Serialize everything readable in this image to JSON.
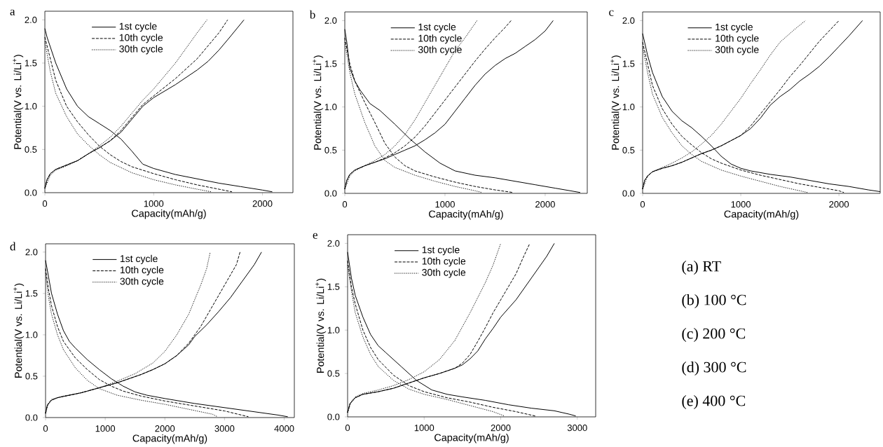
{
  "chart_data": [
    {
      "type": "line",
      "title": "a",
      "xlabel": "Capacity(mAh/g)",
      "ylabel": "Potential(V vs. Li/Li$^{+}$)",
      "xlim": [
        0,
        2280
      ],
      "ylim": [
        0,
        2.1
      ],
      "xticks": [
        0,
        1000,
        2000
      ],
      "yticks": [
        {
          "value": 0,
          "label": "0.0"
        },
        {
          "value": 0.5,
          "label": "0.5"
        },
        {
          "value": 1,
          "label": "1.0"
        },
        {
          "value": 1.5,
          "label": "1.5"
        },
        {
          "value": 2,
          "label": "2.0"
        }
      ],
      "legend": "top left",
      "series": [
        {
          "name": "1st cycle",
          "color": "#000000",
          "line_style": "solid",
          "x": [
            0,
            20,
            100,
            200,
            300,
            400,
            500,
            600,
            700,
            800,
            900,
            1000,
            1200,
            1400,
            1600,
            1800,
            2000,
            2090
          ],
          "values": [
            1.9,
            1.8,
            1.5,
            1.2,
            1.0,
            0.88,
            0.8,
            0.72,
            0.62,
            0.48,
            0.33,
            0.28,
            0.21,
            0.16,
            0.11,
            0.07,
            0.03,
            0.01
          ]
        },
        {
          "name": "10th cycle",
          "color": "#000000",
          "line_style": "dashed",
          "x": [
            0,
            50,
            100,
            200,
            300,
            400,
            500,
            600,
            700,
            800,
            1000,
            1200,
            1400,
            1600,
            1720
          ],
          "values": [
            1.8,
            1.55,
            1.3,
            1.0,
            0.82,
            0.67,
            0.54,
            0.44,
            0.36,
            0.3,
            0.22,
            0.15,
            0.09,
            0.04,
            0.01
          ]
        },
        {
          "name": "30th cycle",
          "color": "#000000",
          "line_style": "dotted",
          "x": [
            0,
            50,
            100,
            200,
            300,
            400,
            500,
            600,
            800,
            1000,
            1200,
            1400,
            1530
          ],
          "values": [
            1.75,
            1.4,
            1.15,
            0.88,
            0.68,
            0.55,
            0.44,
            0.35,
            0.23,
            0.15,
            0.09,
            0.04,
            0.01
          ]
        },
        {
          "color": "#000000",
          "line_style": "solid",
          "x": [
            0,
            20,
            50,
            100,
            200,
            300,
            400,
            500,
            600,
            700,
            800,
            900,
            1000,
            1200,
            1400,
            1500,
            1600,
            1700,
            1830
          ],
          "values": [
            0.05,
            0.15,
            0.22,
            0.27,
            0.32,
            0.37,
            0.45,
            0.52,
            0.6,
            0.7,
            0.85,
            1.0,
            1.1,
            1.25,
            1.42,
            1.52,
            1.65,
            1.8,
            2.0
          ]
        },
        {
          "color": "#000000",
          "line_style": "dashed",
          "x": [
            0,
            20,
            50,
            100,
            200,
            300,
            400,
            500,
            600,
            700,
            800,
            900,
            1000,
            1200,
            1400,
            1600,
            1680
          ],
          "values": [
            0.05,
            0.15,
            0.22,
            0.27,
            0.32,
            0.37,
            0.45,
            0.52,
            0.6,
            0.72,
            0.87,
            1.02,
            1.12,
            1.32,
            1.55,
            1.85,
            2.0
          ]
        },
        {
          "color": "#000000",
          "line_style": "dotted",
          "x": [
            0,
            50,
            100,
            200,
            300,
            400,
            500,
            600,
            700,
            800,
            900,
            1000,
            1200,
            1400,
            1490
          ],
          "values": [
            0.05,
            0.2,
            0.26,
            0.31,
            0.37,
            0.45,
            0.54,
            0.64,
            0.77,
            0.92,
            1.07,
            1.2,
            1.5,
            1.85,
            2.0
          ]
        }
      ]
    },
    {
      "type": "line",
      "title": "b",
      "xlabel": "Capacity(mAh/g)",
      "ylabel": "Potential(V vs. Li/Li$^{+}$)",
      "xlim": [
        0,
        2420
      ],
      "ylim": [
        0,
        2.1
      ],
      "xticks": [
        0,
        1000,
        2000
      ],
      "yticks": [
        {
          "value": 0,
          "label": "0.0"
        },
        {
          "value": 0.5,
          "label": "0.5"
        },
        {
          "value": 1,
          "label": "1.0"
        },
        {
          "value": 1.5,
          "label": "1.5"
        },
        {
          "value": 2,
          "label": "2.0"
        }
      ],
      "legend": "top left",
      "series": [
        {
          "name": "1st cycle",
          "color": "#000000",
          "line_style": "solid",
          "x": [
            0,
            20,
            50,
            100,
            150,
            250,
            350,
            500,
            650,
            800,
            950,
            1100,
            1300,
            1500,
            1700,
            1900,
            2100,
            2350
          ],
          "values": [
            1.9,
            1.75,
            1.45,
            1.3,
            1.2,
            1.04,
            0.96,
            0.8,
            0.63,
            0.48,
            0.35,
            0.26,
            0.21,
            0.18,
            0.14,
            0.1,
            0.06,
            0.01
          ]
        },
        {
          "name": "10th cycle",
          "color": "#000000",
          "line_style": "dashed",
          "x": [
            0,
            50,
            100,
            200,
            300,
            400,
            500,
            600,
            700,
            900,
            1100,
            1300,
            1500,
            1680
          ],
          "values": [
            1.8,
            1.5,
            1.3,
            1.05,
            0.82,
            0.58,
            0.42,
            0.32,
            0.26,
            0.19,
            0.13,
            0.08,
            0.04,
            0.01
          ]
        },
        {
          "name": "30th cycle",
          "color": "#000000",
          "line_style": "dotted",
          "x": [
            0,
            50,
            100,
            200,
            300,
            400,
            500,
            700,
            900,
            1100,
            1300,
            1370
          ],
          "values": [
            1.75,
            1.4,
            1.15,
            0.82,
            0.55,
            0.38,
            0.3,
            0.21,
            0.14,
            0.08,
            0.03,
            0.01
          ]
        },
        {
          "color": "#000000",
          "line_style": "solid",
          "x": [
            0,
            20,
            50,
            100,
            200,
            300,
            400,
            500,
            600,
            700,
            800,
            900,
            1000,
            1100,
            1200,
            1300,
            1400,
            1500,
            1600,
            1700,
            1800,
            1900,
            2000,
            2080
          ],
          "values": [
            0.05,
            0.15,
            0.22,
            0.27,
            0.32,
            0.36,
            0.4,
            0.45,
            0.5,
            0.55,
            0.62,
            0.7,
            0.8,
            0.95,
            1.1,
            1.25,
            1.38,
            1.48,
            1.56,
            1.62,
            1.7,
            1.78,
            1.88,
            2.0
          ]
        },
        {
          "color": "#000000",
          "line_style": "dashed",
          "x": [
            0,
            20,
            50,
            100,
            200,
            300,
            400,
            500,
            600,
            700,
            800,
            900,
            1000,
            1100,
            1200,
            1300,
            1400,
            1500,
            1600,
            1660
          ],
          "values": [
            0.05,
            0.15,
            0.22,
            0.27,
            0.32,
            0.36,
            0.41,
            0.47,
            0.55,
            0.65,
            0.78,
            0.93,
            1.08,
            1.23,
            1.38,
            1.53,
            1.67,
            1.8,
            1.92,
            2.0
          ]
        },
        {
          "color": "#000000",
          "line_style": "dotted",
          "x": [
            0,
            50,
            100,
            200,
            300,
            400,
            500,
            600,
            700,
            800,
            900,
            1000,
            1100,
            1200,
            1320
          ],
          "values": [
            0.05,
            0.2,
            0.26,
            0.32,
            0.38,
            0.45,
            0.55,
            0.68,
            0.85,
            1.05,
            1.25,
            1.45,
            1.65,
            1.8,
            2.0
          ]
        }
      ]
    },
    {
      "type": "line",
      "title": "c",
      "xlabel": "Capacity(mAh/g)",
      "ylabel": "Potential(V vs. Li/Li$^{+}$)",
      "xlim": [
        0,
        2420
      ],
      "ylim": [
        0,
        2.1
      ],
      "xticks": [
        0,
        1000,
        2000
      ],
      "yticks": [
        {
          "value": 0,
          "label": "0.0"
        },
        {
          "value": 0.5,
          "label": "0.5"
        },
        {
          "value": 1,
          "label": "1.0"
        },
        {
          "value": 1.5,
          "label": "1.5"
        },
        {
          "value": 2,
          "label": "2.0"
        }
      ],
      "legend": "top left",
      "series": [
        {
          "name": "1st cycle",
          "color": "#000000",
          "line_style": "solid",
          "x": [
            0,
            50,
            100,
            200,
            300,
            400,
            500,
            600,
            700,
            800,
            900,
            1000,
            1100,
            1300,
            1500,
            1700,
            1900,
            2100,
            2300,
            2420
          ],
          "values": [
            1.85,
            1.6,
            1.4,
            1.12,
            0.95,
            0.84,
            0.76,
            0.66,
            0.55,
            0.43,
            0.34,
            0.29,
            0.26,
            0.22,
            0.19,
            0.15,
            0.11,
            0.08,
            0.04,
            0.02
          ]
        },
        {
          "name": "10th cycle",
          "color": "#000000",
          "line_style": "dashed",
          "x": [
            0,
            50,
            100,
            200,
            300,
            400,
            500,
            600,
            700,
            800,
            1000,
            1200,
            1400,
            1600,
            1800,
            2000,
            2050
          ],
          "values": [
            1.75,
            1.5,
            1.25,
            0.98,
            0.8,
            0.66,
            0.56,
            0.47,
            0.4,
            0.35,
            0.27,
            0.21,
            0.16,
            0.11,
            0.07,
            0.03,
            0.01
          ]
        },
        {
          "name": "30th cycle",
          "color": "#000000",
          "line_style": "dotted",
          "x": [
            0,
            50,
            100,
            200,
            300,
            400,
            500,
            600,
            800,
            1000,
            1200,
            1400,
            1600,
            1680
          ],
          "values": [
            1.7,
            1.4,
            1.15,
            0.88,
            0.7,
            0.55,
            0.45,
            0.37,
            0.27,
            0.2,
            0.14,
            0.08,
            0.03,
            0.01
          ]
        },
        {
          "color": "#000000",
          "line_style": "solid",
          "x": [
            0,
            20,
            50,
            100,
            200,
            300,
            400,
            500,
            600,
            700,
            800,
            900,
            1000,
            1100,
            1200,
            1300,
            1400,
            1500,
            1600,
            1700,
            1800,
            1900,
            2000,
            2100,
            2240
          ],
          "values": [
            0.05,
            0.15,
            0.2,
            0.25,
            0.29,
            0.32,
            0.36,
            0.41,
            0.46,
            0.5,
            0.55,
            0.61,
            0.67,
            0.75,
            0.87,
            1.02,
            1.12,
            1.2,
            1.3,
            1.38,
            1.47,
            1.58,
            1.7,
            1.82,
            2.0
          ]
        },
        {
          "color": "#000000",
          "line_style": "dashed",
          "x": [
            0,
            20,
            50,
            100,
            200,
            300,
            400,
            500,
            600,
            700,
            800,
            900,
            1000,
            1100,
            1200,
            1300,
            1400,
            1500,
            1600,
            1700,
            1800,
            1900,
            2000
          ],
          "values": [
            0.05,
            0.15,
            0.2,
            0.25,
            0.29,
            0.32,
            0.36,
            0.41,
            0.46,
            0.5,
            0.55,
            0.61,
            0.67,
            0.78,
            0.92,
            1.06,
            1.2,
            1.35,
            1.48,
            1.62,
            1.76,
            1.88,
            2.0
          ]
        },
        {
          "color": "#000000",
          "line_style": "dotted",
          "x": [
            0,
            50,
            100,
            200,
            300,
            400,
            500,
            600,
            700,
            800,
            900,
            1000,
            1100,
            1200,
            1300,
            1400,
            1550,
            1660
          ],
          "values": [
            0.05,
            0.2,
            0.25,
            0.3,
            0.35,
            0.41,
            0.48,
            0.57,
            0.67,
            0.8,
            0.95,
            1.1,
            1.27,
            1.43,
            1.6,
            1.75,
            1.9,
            2.0
          ]
        }
      ]
    },
    {
      "type": "line",
      "title": "d",
      "xlabel": "Capacity(mAh/g)",
      "ylabel": "Potential(V vs. Li/Li$^{+}$)",
      "xlim": [
        0,
        4170
      ],
      "ylim": [
        0,
        2.1
      ],
      "xticks": [
        0,
        1000,
        2000,
        3000,
        4000
      ],
      "yticks": [
        {
          "value": 0,
          "label": "0.0"
        },
        {
          "value": 0.5,
          "label": "0.5"
        },
        {
          "value": 1,
          "label": "1.0"
        },
        {
          "value": 1.5,
          "label": "1.5"
        },
        {
          "value": 2,
          "label": "2.0"
        }
      ],
      "legend": "top left",
      "series": [
        {
          "name": "1st cycle",
          "color": "#000000",
          "line_style": "solid",
          "x": [
            0,
            50,
            100,
            200,
            300,
            400,
            500,
            700,
            900,
            1100,
            1300,
            1500,
            1700,
            2000,
            2500,
            3000,
            3500,
            3900,
            4060
          ],
          "values": [
            1.9,
            1.7,
            1.5,
            1.25,
            1.05,
            0.92,
            0.84,
            0.7,
            0.58,
            0.47,
            0.38,
            0.31,
            0.27,
            0.23,
            0.17,
            0.12,
            0.07,
            0.03,
            0.01
          ]
        },
        {
          "name": "10th cycle",
          "color": "#000000",
          "line_style": "dashed",
          "x": [
            0,
            50,
            100,
            200,
            300,
            500,
            700,
            900,
            1100,
            1300,
            1600,
            2000,
            2500,
            3000,
            3400
          ],
          "values": [
            1.8,
            1.55,
            1.35,
            1.1,
            0.92,
            0.72,
            0.58,
            0.46,
            0.38,
            0.32,
            0.26,
            0.2,
            0.14,
            0.08,
            0.01
          ]
        },
        {
          "name": "30th cycle",
          "color": "#000000",
          "line_style": "dotted",
          "x": [
            0,
            50,
            100,
            200,
            300,
            500,
            700,
            900,
            1200,
            1600,
            2000,
            2400,
            2800,
            2880
          ],
          "values": [
            1.75,
            1.45,
            1.25,
            1.0,
            0.82,
            0.6,
            0.45,
            0.35,
            0.27,
            0.21,
            0.16,
            0.1,
            0.04,
            0.01
          ]
        },
        {
          "color": "#000000",
          "line_style": "solid",
          "x": [
            0,
            30,
            100,
            200,
            400,
            600,
            800,
            1000,
            1200,
            1400,
            1600,
            1800,
            2000,
            2200,
            2400,
            2500,
            2700,
            2900,
            3100,
            3300,
            3500,
            3620
          ],
          "values": [
            0.05,
            0.15,
            0.21,
            0.24,
            0.27,
            0.3,
            0.34,
            0.38,
            0.42,
            0.47,
            0.52,
            0.58,
            0.65,
            0.75,
            0.88,
            0.98,
            1.12,
            1.28,
            1.45,
            1.65,
            1.85,
            2.0
          ]
        },
        {
          "color": "#000000",
          "line_style": "dashed",
          "x": [
            0,
            30,
            100,
            200,
            400,
            600,
            800,
            1000,
            1200,
            1400,
            1600,
            1800,
            2000,
            2200,
            2400,
            2600,
            2800,
            3000,
            3200,
            3260
          ],
          "values": [
            0.05,
            0.15,
            0.21,
            0.24,
            0.27,
            0.3,
            0.34,
            0.38,
            0.42,
            0.47,
            0.52,
            0.58,
            0.65,
            0.75,
            0.9,
            1.1,
            1.35,
            1.6,
            1.85,
            2.0
          ]
        },
        {
          "color": "#000000",
          "line_style": "dotted",
          "x": [
            0,
            50,
            100,
            300,
            600,
            900,
            1200,
            1500,
            1800,
            2000,
            2200,
            2400,
            2600,
            2700,
            2760
          ],
          "values": [
            0.05,
            0.18,
            0.22,
            0.26,
            0.3,
            0.36,
            0.44,
            0.53,
            0.66,
            0.8,
            1.0,
            1.25,
            1.6,
            1.8,
            2.0
          ]
        }
      ]
    },
    {
      "type": "line",
      "title": "e",
      "xlabel": "Capacity(mAh/g)",
      "ylabel": "Potential(V vs. Li/Li$^{+}$)",
      "xlim": [
        0,
        3240
      ],
      "ylim": [
        0,
        2.1
      ],
      "xticks": [
        0,
        1000,
        2000,
        3000
      ],
      "yticks": [
        {
          "value": 0,
          "label": "0.0"
        },
        {
          "value": 0.5,
          "label": "0.5"
        },
        {
          "value": 1,
          "label": "1.0"
        },
        {
          "value": 1.5,
          "label": "1.5"
        },
        {
          "value": 2,
          "label": "2.0"
        }
      ],
      "legend": "top left",
      "series": [
        {
          "name": "1st cycle",
          "color": "#000000",
          "line_style": "solid",
          "x": [
            0,
            50,
            100,
            200,
            300,
            400,
            500,
            700,
            900,
            1100,
            1300,
            1500,
            1800,
            2100,
            2400,
            2700,
            2900,
            2980
          ],
          "values": [
            1.9,
            1.6,
            1.4,
            1.15,
            0.95,
            0.82,
            0.74,
            0.58,
            0.42,
            0.31,
            0.26,
            0.23,
            0.19,
            0.14,
            0.1,
            0.07,
            0.03,
            0.01
          ]
        },
        {
          "name": "10th cycle",
          "color": "#000000",
          "line_style": "dashed",
          "x": [
            0,
            50,
            100,
            200,
            300,
            400,
            600,
            800,
            1000,
            1300,
            1600,
            1900,
            2200,
            2450
          ],
          "values": [
            1.8,
            1.5,
            1.3,
            1.0,
            0.8,
            0.66,
            0.48,
            0.36,
            0.29,
            0.22,
            0.17,
            0.11,
            0.06,
            0.01
          ]
        },
        {
          "name": "30th cycle",
          "color": "#000000",
          "line_style": "dotted",
          "x": [
            0,
            50,
            100,
            200,
            300,
            400,
            600,
            800,
            1000,
            1300,
            1600,
            1900,
            2050
          ],
          "values": [
            1.75,
            1.45,
            1.2,
            0.92,
            0.72,
            0.58,
            0.42,
            0.32,
            0.26,
            0.2,
            0.13,
            0.06,
            0.01
          ]
        },
        {
          "color": "#000000",
          "line_style": "solid",
          "x": [
            0,
            30,
            100,
            200,
            400,
            600,
            800,
            1000,
            1200,
            1400,
            1500,
            1600,
            1700,
            1800,
            1900,
            2000,
            2200,
            2400,
            2600,
            2700
          ],
          "values": [
            0.05,
            0.15,
            0.22,
            0.26,
            0.29,
            0.33,
            0.39,
            0.45,
            0.5,
            0.56,
            0.6,
            0.67,
            0.76,
            0.9,
            1.02,
            1.15,
            1.35,
            1.6,
            1.85,
            2.0
          ]
        },
        {
          "color": "#000000",
          "line_style": "dashed",
          "x": [
            0,
            30,
            100,
            200,
            400,
            600,
            800,
            1000,
            1200,
            1400,
            1500,
            1600,
            1700,
            1800,
            1900,
            2000,
            2100,
            2200,
            2300,
            2380
          ],
          "values": [
            0.05,
            0.15,
            0.22,
            0.26,
            0.29,
            0.33,
            0.39,
            0.45,
            0.5,
            0.56,
            0.62,
            0.72,
            0.87,
            1.03,
            1.2,
            1.35,
            1.5,
            1.65,
            1.85,
            2.0
          ]
        },
        {
          "color": "#000000",
          "line_style": "dotted",
          "x": [
            0,
            50,
            100,
            200,
            400,
            600,
            800,
            1000,
            1200,
            1400,
            1600,
            1800,
            1900,
            2000
          ],
          "values": [
            0.05,
            0.18,
            0.23,
            0.27,
            0.31,
            0.36,
            0.43,
            0.52,
            0.66,
            0.88,
            1.2,
            1.55,
            1.75,
            2.0
          ]
        }
      ]
    },
    {
      "type": "other",
      "annotations": [
        "(a) RT",
        "(b) 100 °C",
        "(c) 200 °C",
        "(d) 300 °C",
        "(e) 400 °C"
      ]
    }
  ]
}
